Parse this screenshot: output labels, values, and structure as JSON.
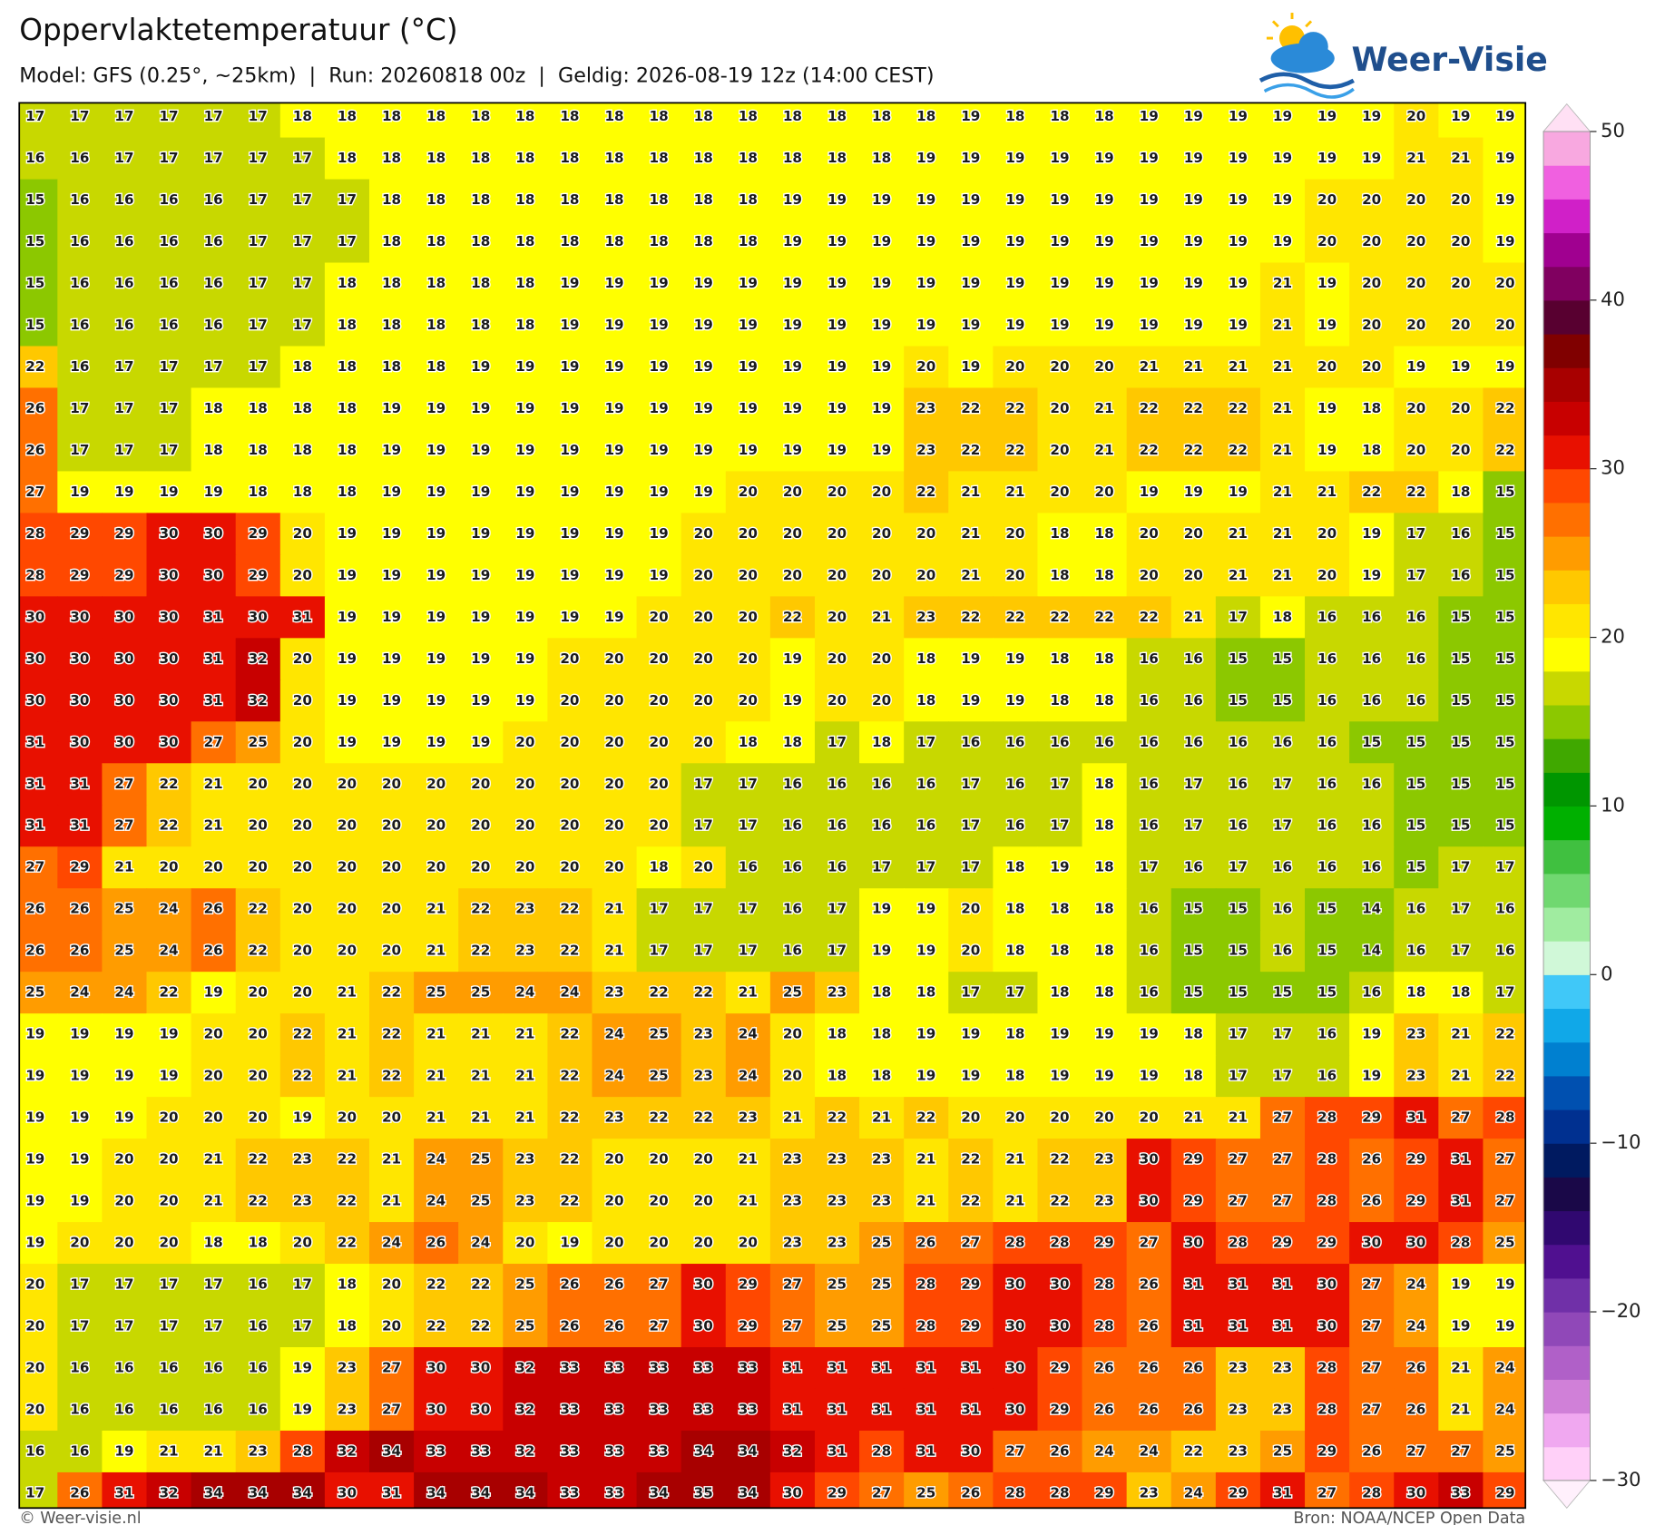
{
  "header": {
    "title": "Oppervlaktetemperatuur (°C)",
    "subtitle": "Model: GFS (0.25°, ~25km)  |  Run: 20260818 00z  |  Geldig: 2026-08-19 12z (14:00 CEST)"
  },
  "logo": "Weer-Visie",
  "footer": {
    "left": "© Weer-visie.nl",
    "right": "Bron: NOAA/NCEP Open Data"
  },
  "chart_data": {
    "type": "heatmap",
    "values": [
      [
        17,
        17,
        17,
        17,
        17,
        17,
        18,
        18,
        18,
        18,
        18,
        18,
        18,
        18,
        18,
        18,
        18,
        18,
        18,
        18,
        18,
        19,
        18,
        18,
        18,
        19,
        19,
        19,
        19,
        19,
        19,
        20,
        19,
        19
      ],
      [
        16,
        16,
        17,
        17,
        17,
        17,
        17,
        18,
        18,
        18,
        18,
        18,
        18,
        18,
        18,
        18,
        18,
        18,
        18,
        18,
        19,
        19,
        19,
        19,
        19,
        19,
        19,
        19,
        19,
        19,
        19,
        21,
        21,
        19
      ],
      [
        15,
        16,
        16,
        16,
        16,
        17,
        17,
        17,
        18,
        18,
        18,
        18,
        18,
        18,
        18,
        18,
        18,
        19,
        19,
        19,
        19,
        19,
        19,
        19,
        19,
        19,
        19,
        19,
        19,
        20,
        20,
        20,
        20,
        19
      ],
      [
        15,
        16,
        16,
        16,
        16,
        17,
        17,
        17,
        18,
        18,
        18,
        18,
        18,
        18,
        18,
        18,
        18,
        19,
        19,
        19,
        19,
        19,
        19,
        19,
        19,
        19,
        19,
        19,
        19,
        20,
        20,
        20,
        20,
        19
      ],
      [
        15,
        16,
        16,
        16,
        16,
        17,
        17,
        18,
        18,
        18,
        18,
        18,
        19,
        19,
        19,
        19,
        19,
        19,
        19,
        19,
        19,
        19,
        19,
        19,
        19,
        19,
        19,
        19,
        21,
        19,
        20,
        20,
        20,
        20
      ],
      [
        15,
        16,
        16,
        16,
        16,
        17,
        17,
        18,
        18,
        18,
        18,
        18,
        19,
        19,
        19,
        19,
        19,
        19,
        19,
        19,
        19,
        19,
        19,
        19,
        19,
        19,
        19,
        19,
        21,
        19,
        20,
        20,
        20,
        20
      ],
      [
        22,
        16,
        17,
        17,
        17,
        17,
        18,
        18,
        18,
        18,
        19,
        19,
        19,
        19,
        19,
        19,
        19,
        19,
        19,
        19,
        20,
        19,
        20,
        20,
        20,
        21,
        21,
        21,
        21,
        20,
        20,
        19,
        19,
        19
      ],
      [
        26,
        17,
        17,
        17,
        18,
        18,
        18,
        18,
        19,
        19,
        19,
        19,
        19,
        19,
        19,
        19,
        19,
        19,
        19,
        19,
        23,
        22,
        22,
        20,
        21,
        22,
        22,
        22,
        21,
        19,
        18,
        20,
        20,
        22
      ],
      [
        26,
        17,
        17,
        17,
        18,
        18,
        18,
        18,
        19,
        19,
        19,
        19,
        19,
        19,
        19,
        19,
        19,
        19,
        19,
        19,
        23,
        22,
        22,
        20,
        21,
        22,
        22,
        22,
        21,
        19,
        18,
        20,
        20,
        22
      ],
      [
        27,
        19,
        19,
        19,
        19,
        18,
        18,
        18,
        19,
        19,
        19,
        19,
        19,
        19,
        19,
        19,
        20,
        20,
        20,
        20,
        22,
        21,
        21,
        20,
        20,
        19,
        19,
        19,
        21,
        21,
        22,
        22,
        18,
        15
      ],
      [
        28,
        29,
        29,
        30,
        30,
        29,
        20,
        19,
        19,
        19,
        19,
        19,
        19,
        19,
        19,
        20,
        20,
        20,
        20,
        20,
        20,
        21,
        20,
        18,
        18,
        20,
        20,
        21,
        21,
        20,
        19,
        17,
        16,
        15
      ],
      [
        28,
        29,
        29,
        30,
        30,
        29,
        20,
        19,
        19,
        19,
        19,
        19,
        19,
        19,
        19,
        20,
        20,
        20,
        20,
        20,
        20,
        21,
        20,
        18,
        18,
        20,
        20,
        21,
        21,
        20,
        19,
        17,
        16,
        15
      ],
      [
        30,
        30,
        30,
        30,
        31,
        30,
        31,
        19,
        19,
        19,
        19,
        19,
        19,
        19,
        20,
        20,
        20,
        22,
        20,
        21,
        23,
        22,
        22,
        22,
        22,
        22,
        21,
        17,
        18,
        16,
        16,
        16,
        15,
        15
      ],
      [
        30,
        30,
        30,
        30,
        31,
        32,
        20,
        19,
        19,
        19,
        19,
        19,
        20,
        20,
        20,
        20,
        20,
        19,
        20,
        20,
        18,
        19,
        19,
        18,
        18,
        16,
        16,
        15,
        15,
        16,
        16,
        16,
        15,
        15
      ],
      [
        30,
        30,
        30,
        30,
        31,
        32,
        20,
        19,
        19,
        19,
        19,
        19,
        20,
        20,
        20,
        20,
        20,
        19,
        20,
        20,
        18,
        19,
        19,
        18,
        18,
        16,
        16,
        15,
        15,
        16,
        16,
        16,
        15,
        15
      ],
      [
        31,
        30,
        30,
        30,
        27,
        25,
        20,
        19,
        19,
        19,
        19,
        20,
        20,
        20,
        20,
        20,
        18,
        18,
        17,
        18,
        17,
        16,
        16,
        16,
        16,
        16,
        16,
        16,
        16,
        16,
        15,
        15,
        15,
        15
      ],
      [
        31,
        31,
        27,
        22,
        21,
        20,
        20,
        20,
        20,
        20,
        20,
        20,
        20,
        20,
        20,
        17,
        17,
        16,
        16,
        16,
        16,
        17,
        16,
        17,
        18,
        16,
        17,
        16,
        17,
        16,
        16,
        15,
        15,
        15
      ],
      [
        31,
        31,
        27,
        22,
        21,
        20,
        20,
        20,
        20,
        20,
        20,
        20,
        20,
        20,
        20,
        17,
        17,
        16,
        16,
        16,
        16,
        17,
        16,
        17,
        18,
        16,
        17,
        16,
        17,
        16,
        16,
        15,
        15,
        15
      ],
      [
        27,
        29,
        21,
        20,
        20,
        20,
        20,
        20,
        20,
        20,
        20,
        20,
        20,
        20,
        18,
        20,
        16,
        16,
        16,
        17,
        17,
        17,
        18,
        19,
        18,
        17,
        16,
        17,
        16,
        16,
        16,
        15,
        17,
        17
      ],
      [
        26,
        26,
        25,
        24,
        26,
        22,
        20,
        20,
        20,
        21,
        22,
        23,
        22,
        21,
        17,
        17,
        17,
        16,
        17,
        19,
        19,
        20,
        18,
        18,
        18,
        16,
        15,
        15,
        16,
        15,
        14,
        16,
        17,
        16
      ],
      [
        26,
        26,
        25,
        24,
        26,
        22,
        20,
        20,
        20,
        21,
        22,
        23,
        22,
        21,
        17,
        17,
        17,
        16,
        17,
        19,
        19,
        20,
        18,
        18,
        18,
        16,
        15,
        15,
        16,
        15,
        14,
        16,
        17,
        16
      ],
      [
        25,
        24,
        24,
        22,
        19,
        20,
        20,
        21,
        22,
        25,
        25,
        24,
        24,
        23,
        22,
        22,
        21,
        25,
        23,
        18,
        18,
        17,
        17,
        18,
        18,
        16,
        15,
        15,
        15,
        15,
        16,
        18,
        18,
        17
      ],
      [
        19,
        19,
        19,
        19,
        20,
        20,
        22,
        21,
        22,
        21,
        21,
        21,
        22,
        24,
        25,
        23,
        24,
        20,
        18,
        18,
        19,
        19,
        18,
        19,
        19,
        19,
        18,
        17,
        17,
        16,
        19,
        23,
        21,
        22
      ],
      [
        19,
        19,
        19,
        19,
        20,
        20,
        22,
        21,
        22,
        21,
        21,
        21,
        22,
        24,
        25,
        23,
        24,
        20,
        18,
        18,
        19,
        19,
        18,
        19,
        19,
        19,
        18,
        17,
        17,
        16,
        19,
        23,
        21,
        22
      ],
      [
        19,
        19,
        19,
        20,
        20,
        20,
        19,
        20,
        20,
        21,
        21,
        21,
        22,
        23,
        22,
        22,
        23,
        21,
        22,
        21,
        22,
        20,
        20,
        20,
        20,
        20,
        21,
        21,
        27,
        28,
        29,
        31,
        27,
        28
      ],
      [
        19,
        19,
        20,
        20,
        21,
        22,
        23,
        22,
        21,
        24,
        25,
        23,
        22,
        20,
        20,
        20,
        21,
        23,
        23,
        23,
        21,
        22,
        21,
        22,
        23,
        30,
        29,
        27,
        27,
        28,
        26,
        29,
        31,
        27
      ],
      [
        19,
        19,
        20,
        20,
        21,
        22,
        23,
        22,
        21,
        24,
        25,
        23,
        22,
        20,
        20,
        20,
        21,
        23,
        23,
        23,
        21,
        22,
        21,
        22,
        23,
        30,
        29,
        27,
        27,
        28,
        26,
        29,
        31,
        27
      ],
      [
        19,
        20,
        20,
        20,
        18,
        18,
        20,
        22,
        24,
        26,
        24,
        20,
        19,
        20,
        20,
        20,
        20,
        23,
        23,
        25,
        26,
        27,
        28,
        28,
        29,
        27,
        30,
        28,
        29,
        29,
        30,
        30,
        28,
        25
      ],
      [
        20,
        17,
        17,
        17,
        17,
        16,
        17,
        18,
        20,
        22,
        22,
        25,
        26,
        26,
        27,
        30,
        29,
        27,
        25,
        25,
        28,
        29,
        30,
        30,
        28,
        26,
        31,
        31,
        31,
        30,
        27,
        24,
        19,
        19
      ],
      [
        20,
        17,
        17,
        17,
        17,
        16,
        17,
        18,
        20,
        22,
        22,
        25,
        26,
        26,
        27,
        30,
        29,
        27,
        25,
        25,
        28,
        29,
        30,
        30,
        28,
        26,
        31,
        31,
        31,
        30,
        27,
        24,
        19,
        19
      ],
      [
        20,
        16,
        16,
        16,
        16,
        16,
        19,
        23,
        27,
        30,
        30,
        32,
        33,
        33,
        33,
        33,
        33,
        31,
        31,
        31,
        31,
        31,
        30,
        29,
        26,
        26,
        26,
        23,
        23,
        28,
        27,
        26,
        21,
        24
      ],
      [
        20,
        16,
        16,
        16,
        16,
        16,
        19,
        23,
        27,
        30,
        30,
        32,
        33,
        33,
        33,
        33,
        33,
        31,
        31,
        31,
        31,
        31,
        30,
        29,
        26,
        26,
        26,
        23,
        23,
        28,
        27,
        26,
        21,
        24
      ],
      [
        16,
        16,
        19,
        21,
        21,
        23,
        28,
        32,
        34,
        33,
        33,
        32,
        33,
        33,
        33,
        34,
        34,
        32,
        31,
        28,
        31,
        30,
        27,
        26,
        24,
        24,
        22,
        23,
        25,
        29,
        26,
        27,
        27,
        25
      ],
      [
        17,
        26,
        31,
        32,
        34,
        34,
        34,
        30,
        31,
        34,
        34,
        34,
        33,
        33,
        34,
        35,
        34,
        30,
        29,
        27,
        25,
        26,
        28,
        28,
        29,
        23,
        24,
        29,
        31,
        27,
        28,
        30,
        33,
        29
      ]
    ],
    "colorbar": {
      "lim": [
        -30,
        50
      ],
      "ticks": [
        50,
        40,
        30,
        20,
        10,
        0,
        {
          "value": -10,
          "label": "−10"
        },
        {
          "value": -20,
          "label": "−20"
        },
        {
          "value": -30,
          "label": "−30"
        }
      ],
      "colors": [
        "#ffd0f8",
        "#f0a8f0",
        "#d080d8",
        "#b060c8",
        "#9048b8",
        "#7030a8",
        "#501090",
        "#300870",
        "#1a0848",
        "#001a60",
        "#003090",
        "#0050b0",
        "#0080d0",
        "#10a8e8",
        "#40c8f8",
        "#d0f8d8",
        "#a0eca0",
        "#70d870",
        "#40c040",
        "#00b000",
        "#009600",
        "#40a800",
        "#8cc800",
        "#c8d800",
        "#ffff00",
        "#ffe600",
        "#ffc800",
        "#ff9c00",
        "#ff7000",
        "#ff4800",
        "#e81000",
        "#c80000",
        "#a80000",
        "#800000",
        "#580030",
        "#800060",
        "#a00090",
        "#d020c8",
        "#f060e0",
        "#f8a8e0"
      ]
    }
  }
}
